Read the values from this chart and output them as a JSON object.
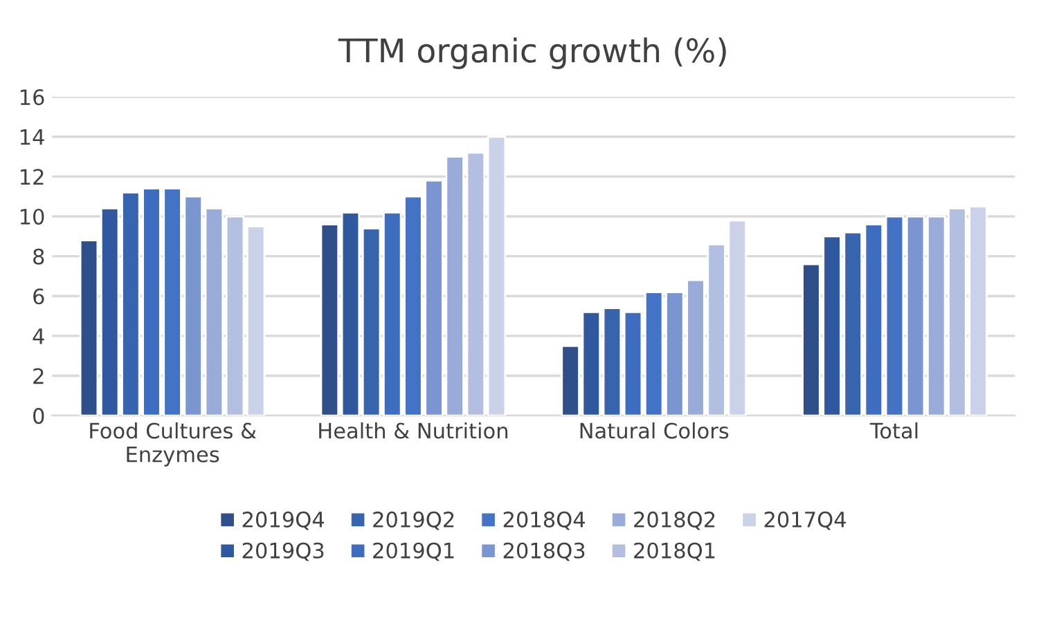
{
  "chart_data": {
    "type": "bar",
    "title": "TTM organic growth (%)",
    "categories": [
      "Food Cultures &\nEnzymes",
      "Health & Nutrition",
      "Natural Colors",
      "Total"
    ],
    "series": [
      {
        "name": "2019Q4",
        "color": "#2e4f8a",
        "values": [
          8.8,
          9.6,
          3.5,
          7.6
        ]
      },
      {
        "name": "2019Q3",
        "color": "#30589f",
        "values": [
          10.4,
          10.2,
          5.2,
          9.0
        ]
      },
      {
        "name": "2019Q2",
        "color": "#3864ad",
        "values": [
          11.2,
          9.4,
          5.4,
          9.2
        ]
      },
      {
        "name": "2019Q1",
        "color": "#3e6cbf",
        "values": [
          11.4,
          10.2,
          5.2,
          9.6
        ]
      },
      {
        "name": "2018Q4",
        "color": "#4472c4",
        "values": [
          11.4,
          11.0,
          6.2,
          10.0
        ]
      },
      {
        "name": "2018Q3",
        "color": "#7b95d0",
        "values": [
          11.0,
          11.8,
          6.2,
          10.0
        ]
      },
      {
        "name": "2018Q2",
        "color": "#99abd8",
        "values": [
          10.4,
          13.0,
          6.8,
          10.0
        ]
      },
      {
        "name": "2018Q1",
        "color": "#b3bfe0",
        "values": [
          10.0,
          13.2,
          8.6,
          10.4
        ]
      },
      {
        "name": "2017Q4",
        "color": "#cad1e8",
        "values": [
          9.5,
          14.0,
          9.8,
          10.5
        ]
      }
    ],
    "ylim": [
      0,
      16
    ],
    "yticks": [
      0,
      2,
      4,
      6,
      8,
      10,
      12,
      14,
      16
    ],
    "grid": "y",
    "legend": "bottom"
  }
}
